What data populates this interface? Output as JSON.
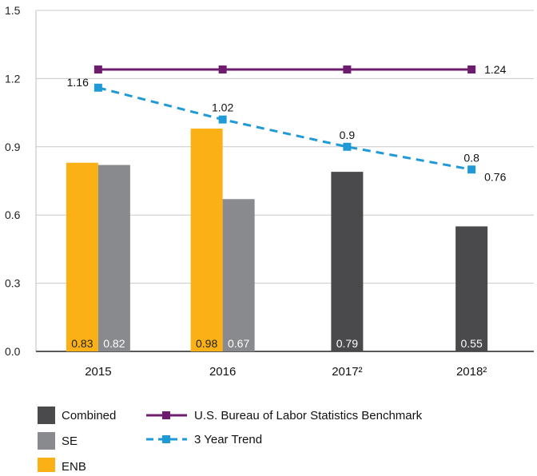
{
  "chart_data": {
    "type": "bar",
    "categories": [
      "2015",
      "2016",
      "2017²",
      "2018²"
    ],
    "ylim": [
      0,
      1.5
    ],
    "yticks": [
      "0.0",
      "0.3",
      "0.6",
      "0.9",
      "1.2",
      "1.5"
    ],
    "grid": "horizontal",
    "legend_position": "bottom-left",
    "series": [
      {
        "name": "ENB",
        "kind": "bar",
        "color": "#fbb115",
        "values": [
          0.83,
          0.98,
          null,
          null
        ],
        "labels": [
          "0.83",
          "0.98",
          "",
          ""
        ]
      },
      {
        "name": "SE",
        "kind": "bar",
        "color": "#898a8d",
        "values": [
          0.82,
          0.67,
          null,
          null
        ],
        "labels": [
          "0.82",
          "0.67",
          "",
          ""
        ]
      },
      {
        "name": "Combined",
        "kind": "bar",
        "color": "#4a4a4c",
        "values": [
          null,
          null,
          0.79,
          0.55
        ],
        "labels": [
          "",
          "",
          "0.79",
          "0.55"
        ]
      },
      {
        "name": "U.S. Bureau of Labor Statistics Benchmark",
        "kind": "line",
        "color": "#6e1c6e",
        "values": [
          1.24,
          1.24,
          1.24,
          1.24
        ],
        "labels": [
          "",
          "",
          "",
          "1.24"
        ]
      },
      {
        "name": "3 Year Trend",
        "kind": "dashed-line",
        "color": "#1f9ad6",
        "values": [
          1.16,
          1.02,
          0.9,
          0.8
        ],
        "labels": [
          "1.16",
          "1.02",
          "0.9",
          "0.8"
        ]
      }
    ],
    "annotations": [
      "0.76"
    ],
    "legend": [
      {
        "name": "Combined",
        "symbol": "square",
        "color": "#4a4a4c"
      },
      {
        "name": "SE",
        "symbol": "square",
        "color": "#898a8d"
      },
      {
        "name": "ENB",
        "symbol": "square",
        "color": "#fbb115"
      },
      {
        "name": "U.S. Bureau of Labor Statistics Benchmark",
        "symbol": "line-marker",
        "color": "#6e1c6e"
      },
      {
        "name": "3 Year Trend",
        "symbol": "dashed-marker",
        "color": "#1f9ad6"
      }
    ]
  }
}
